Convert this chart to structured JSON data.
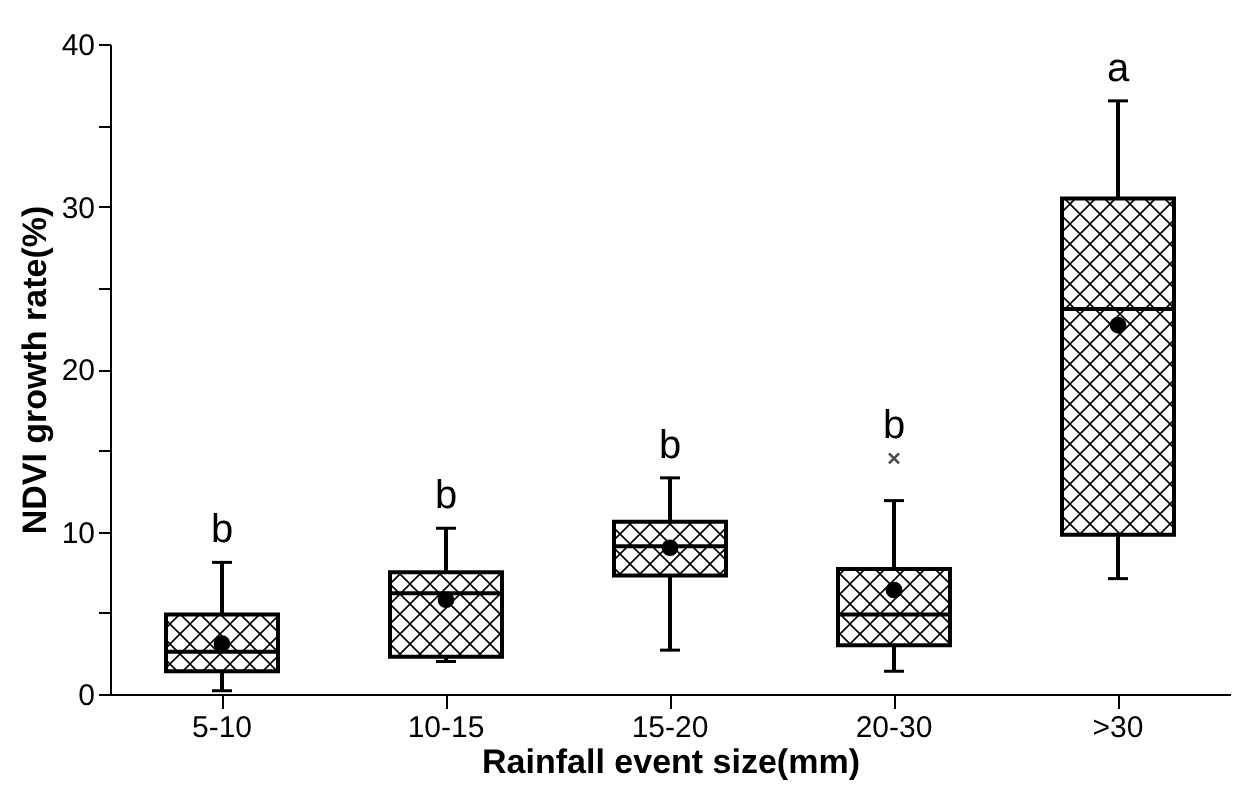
{
  "chart_data": {
    "type": "box",
    "xlabel": "Rainfall event size(mm)",
    "ylabel": "NDVI growth rate(%)",
    "categories": [
      "5-10",
      "10-15",
      "15-20",
      "20-30",
      ">30"
    ],
    "ylim": [
      0,
      40
    ],
    "yticks": [
      0,
      {
        "value": 5,
        "label": null
      },
      10,
      {
        "value": 15,
        "label": null
      },
      20,
      {
        "value": 25,
        "label": null
      },
      30,
      {
        "value": 35,
        "label": null
      },
      40
    ],
    "marker": "circle",
    "boxes": [
      {
        "low": 0.2,
        "q1": 1.4,
        "median": 2.6,
        "q3": 4.9,
        "high": 8.1,
        "mean": 3.1
      },
      {
        "low": 2.0,
        "q1": 2.3,
        "median": 6.2,
        "q3": 7.5,
        "high": 10.2,
        "mean": 5.8
      },
      {
        "low": 2.7,
        "q1": 7.3,
        "median": 9.1,
        "q3": 10.6,
        "high": 13.3,
        "mean": 9.0
      },
      {
        "low": 1.4,
        "q1": 3.0,
        "median": 4.9,
        "q3": 7.7,
        "high": 11.9,
        "mean": 6.4,
        "outliers": [
          14.5
        ]
      },
      {
        "low": 7.1,
        "q1": 9.8,
        "median": 23.7,
        "q3": 30.5,
        "high": 36.5,
        "mean": 22.7
      }
    ],
    "annotations": [
      "b",
      "b",
      "b",
      "b",
      "a"
    ]
  }
}
